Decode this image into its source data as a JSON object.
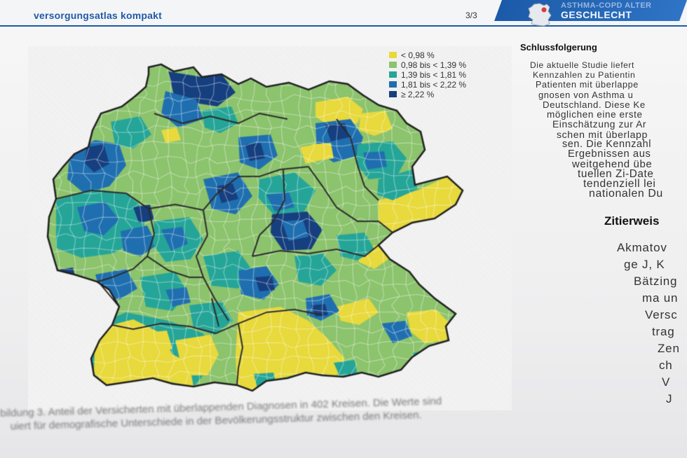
{
  "header": {
    "title": "versorgungsatlas kompakt",
    "page_number": "3/3",
    "banner_line1": "ASTHMA-COPD ALTER",
    "banner_line2": "GESCHLECHT",
    "banner_icon": "germany-silhouette-icon"
  },
  "map": {
    "legend": [
      {
        "label": "< 0,98 %",
        "color": "#e8d93c"
      },
      {
        "label": "0,98 bis < 1,39 %",
        "color": "#8cc36d"
      },
      {
        "label": "1,39 bis < 1,81 %",
        "color": "#25a598"
      },
      {
        "label": "1,81 bis < 2,22 %",
        "color": "#1f6fb0"
      },
      {
        "label": "≥ 2,22 %",
        "color": "#163f7f"
      }
    ]
  },
  "right_column": {
    "heading": "Schlussfolgerung",
    "lines": [
      "Die aktuelle Studie liefert",
      "Kennzahlen zu Patientin",
      "Patienten mit überlappe",
      "gnosen von Asthma u",
      "Deutschland. Diese Ke",
      "möglichen eine erste",
      "Einschätzung zur Ar",
      "schen mit überlapp",
      "sen. Die Kennzahl",
      "Ergebnissen aus",
      "weitgehend übe",
      "tuellen Zi-Date",
      "tendenziell lei",
      "nationalen Du"
    ],
    "cite_heading": "Zitierweis",
    "cite_lines": [
      "Akmatov",
      "ge J, K",
      "Bätzing",
      "ma un",
      "Versc",
      "trag",
      "Zen",
      "ch",
      "V",
      "J"
    ]
  },
  "caption": {
    "line1": "bildung 3. Anteil der Versicherten mit überlappenden Diagnosen in 402 Kreisen. Die Werte sind",
    "line2": "uiert für demografische Unterschiede in der Bevölkerungsstruktur zwischen den Kreisen."
  }
}
